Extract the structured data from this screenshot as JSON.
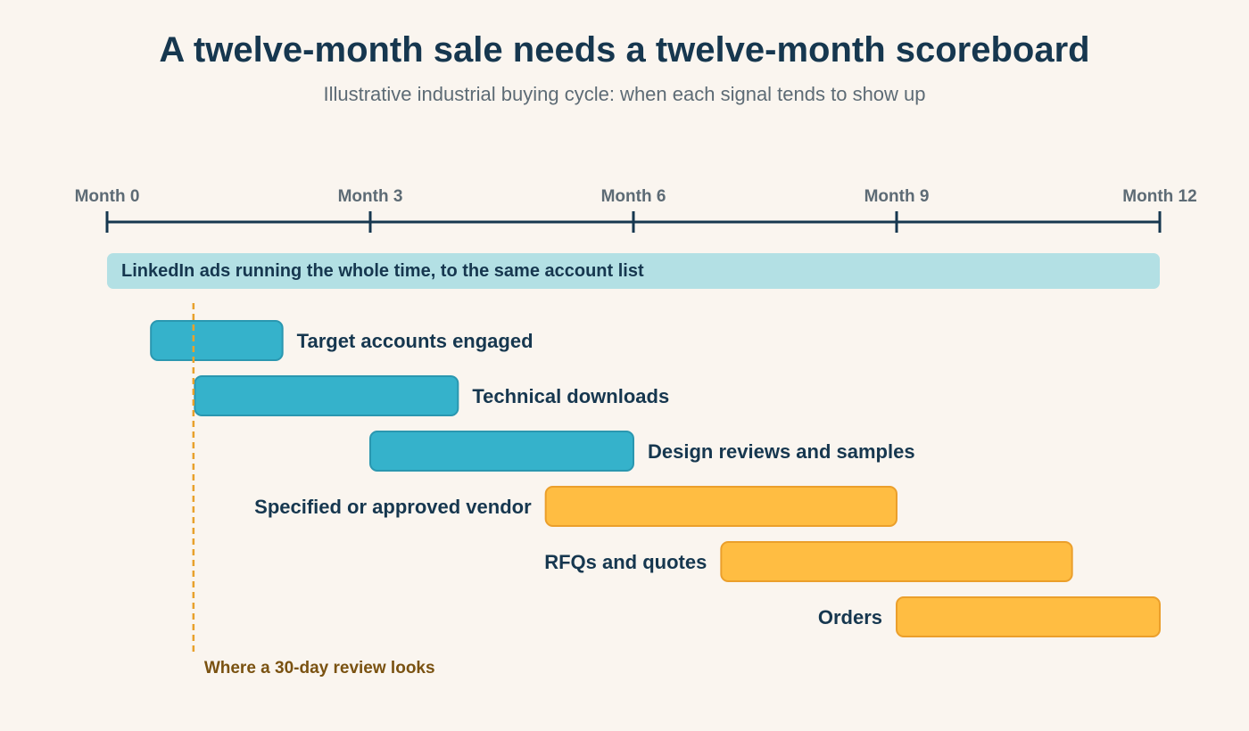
{
  "chart_data": {
    "type": "gantt",
    "title": "A twelve-month sale needs a twelve-month scoreboard",
    "subtitle": "Illustrative industrial buying cycle: when each signal tends to show up",
    "x_axis": {
      "range": [
        0,
        12
      ],
      "ticks": [
        {
          "value": 0,
          "label": "Month 0"
        },
        {
          "value": 3,
          "label": "Month 3"
        },
        {
          "value": 6,
          "label": "Month 6"
        },
        {
          "value": 9,
          "label": "Month 9"
        },
        {
          "value": 12,
          "label": "Month 12"
        }
      ]
    },
    "background_band": {
      "label": "LinkedIn ads running the whole time, to the same account list",
      "start": 0,
      "end": 12,
      "color": "#b3e0e4"
    },
    "tasks": [
      {
        "label": "Target accounts engaged",
        "start": 0.5,
        "end": 2.0,
        "group": "early",
        "label_side": "right"
      },
      {
        "label": "Technical downloads",
        "start": 1.0,
        "end": 4.0,
        "group": "early",
        "label_side": "right"
      },
      {
        "label": "Design reviews and samples",
        "start": 3.0,
        "end": 6.0,
        "group": "early",
        "label_side": "right"
      },
      {
        "label": "Specified or approved vendor",
        "start": 5.0,
        "end": 9.0,
        "group": "late",
        "label_side": "left"
      },
      {
        "label": "RFQs and quotes",
        "start": 7.0,
        "end": 11.0,
        "group": "late",
        "label_side": "left"
      },
      {
        "label": "Orders",
        "start": 9.0,
        "end": 12.0,
        "group": "late",
        "label_side": "left"
      }
    ],
    "marker": {
      "value": 1.0,
      "label": "Where a 30-day review looks",
      "style": "dashed"
    },
    "colors": {
      "early_fill": "#35b2cb",
      "early_stroke": "#2a97b0",
      "late_fill": "#ffbd42",
      "late_stroke": "#eb9f2b",
      "axis": "#16374f",
      "tick_label": "#5d6b75",
      "task_label": "#16374f",
      "marker_line": "#e8a12c",
      "marker_label": "#7a5211"
    }
  }
}
